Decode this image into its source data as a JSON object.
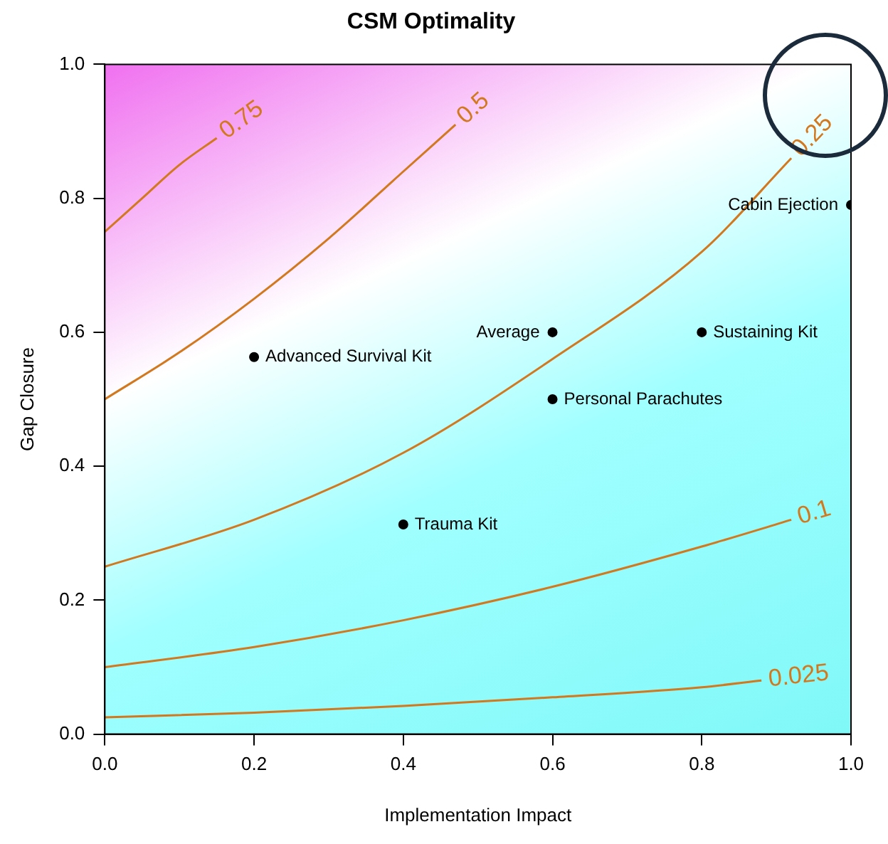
{
  "chart_data": {
    "type": "scatter",
    "title": "CSM Optimality",
    "xlabel": "Implementation Impact",
    "ylabel": "Gap Closure",
    "xlim": [
      0,
      1
    ],
    "ylim": [
      0,
      1
    ],
    "xticks": [
      {
        "value": 0,
        "label": "0.0"
      },
      0.2,
      0.4,
      0.6,
      0.8,
      {
        "value": 1,
        "label": "1.0"
      }
    ],
    "yticks": [
      {
        "value": 0,
        "label": "0.0"
      },
      0.2,
      0.4,
      0.6,
      0.8,
      {
        "value": 1,
        "label": "1.0"
      }
    ],
    "series": [
      {
        "name": "0.75",
        "type": "line",
        "color": "#d2781e",
        "x": [
          0,
          0.05,
          0.1,
          0.15
        ],
        "values": [
          0.75,
          0.8,
          0.85,
          0.89
        ]
      },
      {
        "name": "0.5",
        "type": "line",
        "color": "#d2781e",
        "x": [
          0,
          0.1,
          0.2,
          0.3,
          0.4,
          0.47
        ],
        "values": [
          0.5,
          0.57,
          0.65,
          0.74,
          0.84,
          0.91
        ]
      },
      {
        "name": "0.25",
        "type": "line",
        "color": "#d2781e",
        "x": [
          0,
          0.2,
          0.4,
          0.6,
          0.8,
          0.92
        ],
        "values": [
          0.25,
          0.32,
          0.42,
          0.56,
          0.72,
          0.86
        ]
      },
      {
        "name": "0.1",
        "type": "line",
        "color": "#d2781e",
        "x": [
          0,
          0.2,
          0.4,
          0.6,
          0.8,
          0.92
        ],
        "values": [
          0.1,
          0.13,
          0.17,
          0.22,
          0.28,
          0.32
        ]
      },
      {
        "name": "0.025",
        "type": "line",
        "color": "#d2781e",
        "x": [
          0,
          0.2,
          0.4,
          0.6,
          0.8,
          0.88
        ],
        "values": [
          0.025,
          0.032,
          0.042,
          0.055,
          0.07,
          0.08
        ]
      },
      {
        "color": "#000000",
        "x": [
          1,
          0.6,
          0.8,
          0.2,
          0.6,
          0.4
        ],
        "values": [
          0.79,
          0.6,
          0.6,
          0.563,
          0.5,
          0.313
        ]
      }
    ],
    "annotations": [
      {
        "text": "Cabin Ejection",
        "x": 1,
        "y": 0.79
      },
      {
        "text": "Average",
        "x": 0.6,
        "y": 0.6
      },
      {
        "text": "Sustaining Kit",
        "x": 0.8,
        "y": 0.6
      },
      {
        "text": "Advanced Survival Kit",
        "x": 0.2,
        "y": 0.563
      },
      {
        "text": "Personal Parachutes",
        "x": 0.6,
        "y": 0.5
      },
      {
        "text": "Trauma Kit",
        "x": 0.4,
        "y": 0.313
      }
    ],
    "grid": false,
    "legend": false,
    "line_style": "solid"
  }
}
